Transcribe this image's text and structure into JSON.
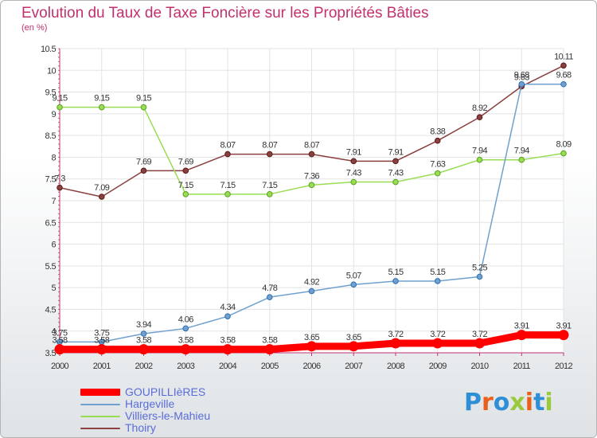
{
  "title": "Evolution du Taux de Taxe Foncière sur les Propriétés Bâties",
  "subtitle": "(en %)",
  "logo": {
    "text": "Proxiti",
    "colors": [
      "#2e8fd6",
      "#e8601c",
      "#2e8fd6",
      "#9bc93c",
      "#e8601c",
      "#2e8fd6",
      "#9bc93c"
    ]
  },
  "chart_data": {
    "type": "line",
    "title": "Evolution du Taux de Taxe Foncière sur les Propriétés Bâties",
    "ylabel": "(en %)",
    "xlabel": "",
    "x": [
      "2000",
      "2001",
      "2002",
      "2003",
      "2004",
      "2005",
      "2006",
      "2007",
      "2008",
      "2009",
      "2010",
      "2011",
      "2012"
    ],
    "ylim": [
      3.5,
      10.5
    ],
    "yticks": [
      "3.5",
      "4",
      "4.5",
      "5",
      "5.5",
      "6",
      "6.5",
      "7",
      "7.5",
      "8",
      "8.5",
      "9",
      "9.5",
      "10",
      "10.5"
    ],
    "grid": true,
    "series": [
      {
        "name": "GOUPILLIèRES",
        "color": "#ff0000",
        "values": [
          3.58,
          3.58,
          3.58,
          3.58,
          3.58,
          3.58,
          3.65,
          3.65,
          3.72,
          3.72,
          3.72,
          3.91,
          3.91
        ],
        "labels": [
          "3.58",
          "3.58",
          "3.58",
          "3.58",
          "3.58",
          "3.58",
          "3.65",
          "3.65",
          "3.72",
          "3.72",
          "3.72",
          "3.91",
          "3.91"
        ]
      },
      {
        "name": "Hargeville",
        "color": "#6fa0d0",
        "values": [
          3.75,
          3.75,
          3.94,
          4.06,
          4.34,
          4.78,
          4.92,
          5.07,
          5.15,
          5.15,
          5.25,
          9.68,
          9.68
        ],
        "labels": [
          "3.75",
          "3.75",
          "3.94",
          "4.06",
          "4.34",
          "4.78",
          "4.92",
          "5.07",
          "5.15",
          "5.15",
          "5.25",
          "9.68",
          "9.68"
        ]
      },
      {
        "name": "Villiers-le-Mahieu",
        "color": "#99dd55",
        "values": [
          9.15,
          9.15,
          9.15,
          7.15,
          7.15,
          7.15,
          7.36,
          7.43,
          7.43,
          7.63,
          7.94,
          7.94,
          8.09
        ],
        "labels": [
          "9.15",
          "9.15",
          "9.15",
          "7.15",
          "7.15",
          "7.15",
          "7.36",
          "7.43",
          "7.43",
          "7.63",
          "7.94",
          "7.94",
          "8.09"
        ]
      },
      {
        "name": "Thoiry",
        "color": "#8b4040",
        "values": [
          7.3,
          7.09,
          7.69,
          7.69,
          8.07,
          8.07,
          8.07,
          7.91,
          7.91,
          8.38,
          8.92,
          9.63,
          10.11
        ],
        "labels": [
          "7.3",
          "7.09",
          "7.69",
          "7.69",
          "8.07",
          "8.07",
          "8.07",
          "7.91",
          "7.91",
          "8.38",
          "8.92",
          "9.63",
          "10.11"
        ]
      }
    ]
  }
}
